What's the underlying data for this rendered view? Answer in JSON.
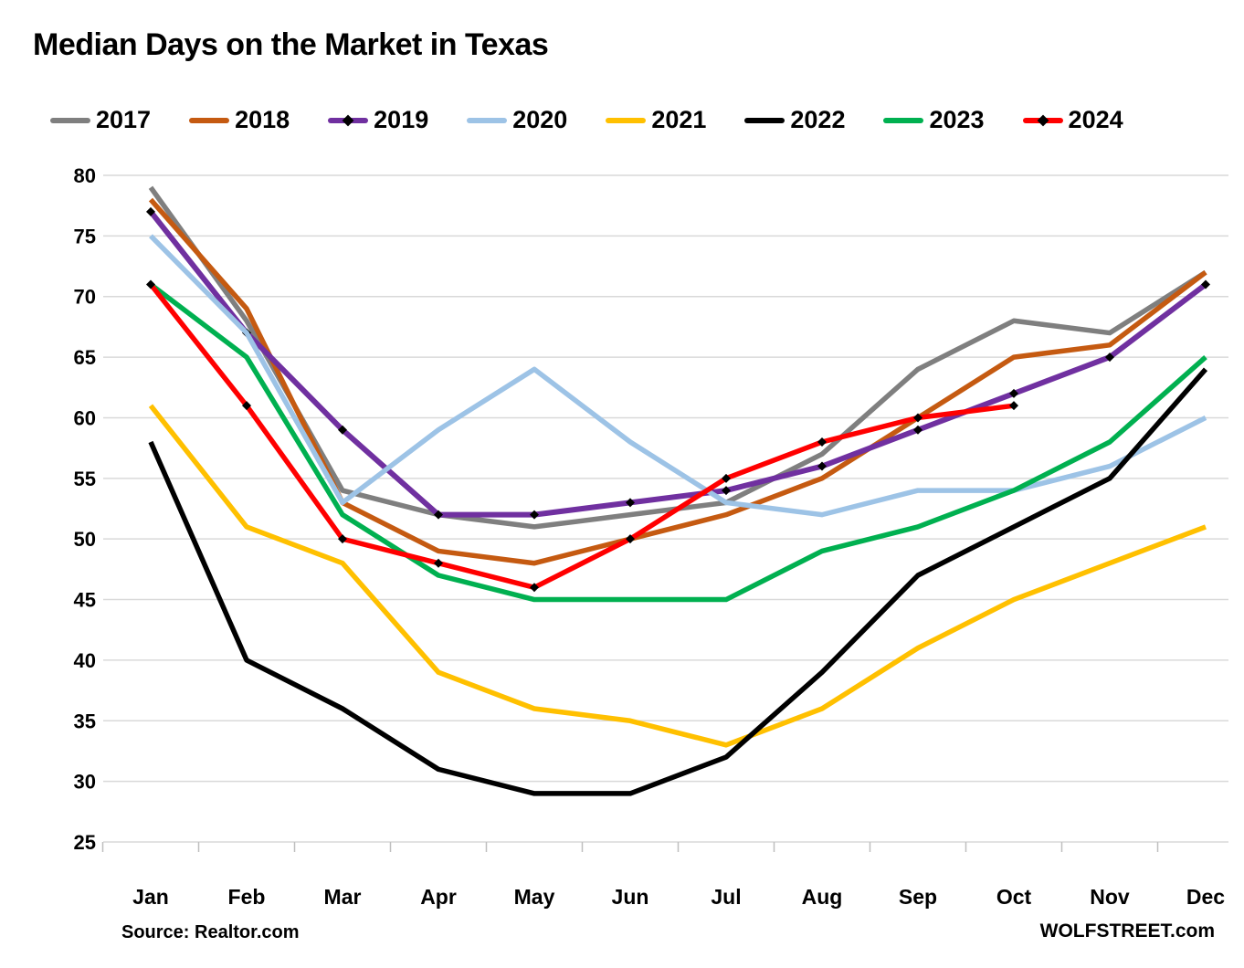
{
  "title": "Median Days on the Market in Texas",
  "source_left": "Source: Realtor.com",
  "source_right": "WOLFSTREET.com",
  "colors": {
    "background": "#FFFFFF",
    "gridline": "#D9D9D9",
    "tick": "#BFBFBF",
    "text": "#000000",
    "marker": "#000000"
  },
  "chart_data": {
    "type": "line",
    "title": "Median Days on the Market in Texas",
    "xlabel": "",
    "ylabel": "",
    "categories": [
      "Jan",
      "Feb",
      "Mar",
      "Apr",
      "May",
      "Jun",
      "Jul",
      "Aug",
      "Sep",
      "Oct",
      "Nov",
      "Dec"
    ],
    "ylim": [
      25,
      80
    ],
    "ytick_step": 5,
    "grid": "horizontal",
    "legend_position": "top",
    "series": [
      {
        "name": "2017",
        "color": "#7F7F7F",
        "marker": false,
        "values": [
          79,
          68,
          54,
          52,
          51,
          52,
          53,
          57,
          64,
          68,
          67,
          72
        ]
      },
      {
        "name": "2018",
        "color": "#C55A11",
        "marker": false,
        "values": [
          78,
          69,
          53,
          49,
          48,
          50,
          52,
          55,
          60,
          65,
          66,
          72
        ]
      },
      {
        "name": "2019",
        "color": "#7030A0",
        "marker": true,
        "values": [
          77,
          67,
          59,
          52,
          52,
          53,
          54,
          56,
          59,
          62,
          65,
          71
        ]
      },
      {
        "name": "2020",
        "color": "#9DC3E6",
        "marker": false,
        "values": [
          75,
          67,
          53,
          59,
          64,
          58,
          53,
          52,
          54,
          54,
          56,
          60
        ]
      },
      {
        "name": "2021",
        "color": "#FFC000",
        "marker": false,
        "values": [
          61,
          51,
          48,
          39,
          36,
          35,
          33,
          36,
          41,
          45,
          48,
          51
        ]
      },
      {
        "name": "2022",
        "color": "#000000",
        "marker": false,
        "values": [
          58,
          40,
          36,
          31,
          29,
          29,
          32,
          39,
          47,
          51,
          55,
          64
        ]
      },
      {
        "name": "2023",
        "color": "#00B050",
        "marker": false,
        "values": [
          71,
          65,
          52,
          47,
          45,
          45,
          45,
          49,
          51,
          54,
          58,
          65
        ]
      },
      {
        "name": "2024",
        "color": "#FF0000",
        "marker": true,
        "values": [
          71,
          61,
          50,
          48,
          46,
          50,
          55,
          58,
          60,
          61
        ]
      }
    ]
  }
}
